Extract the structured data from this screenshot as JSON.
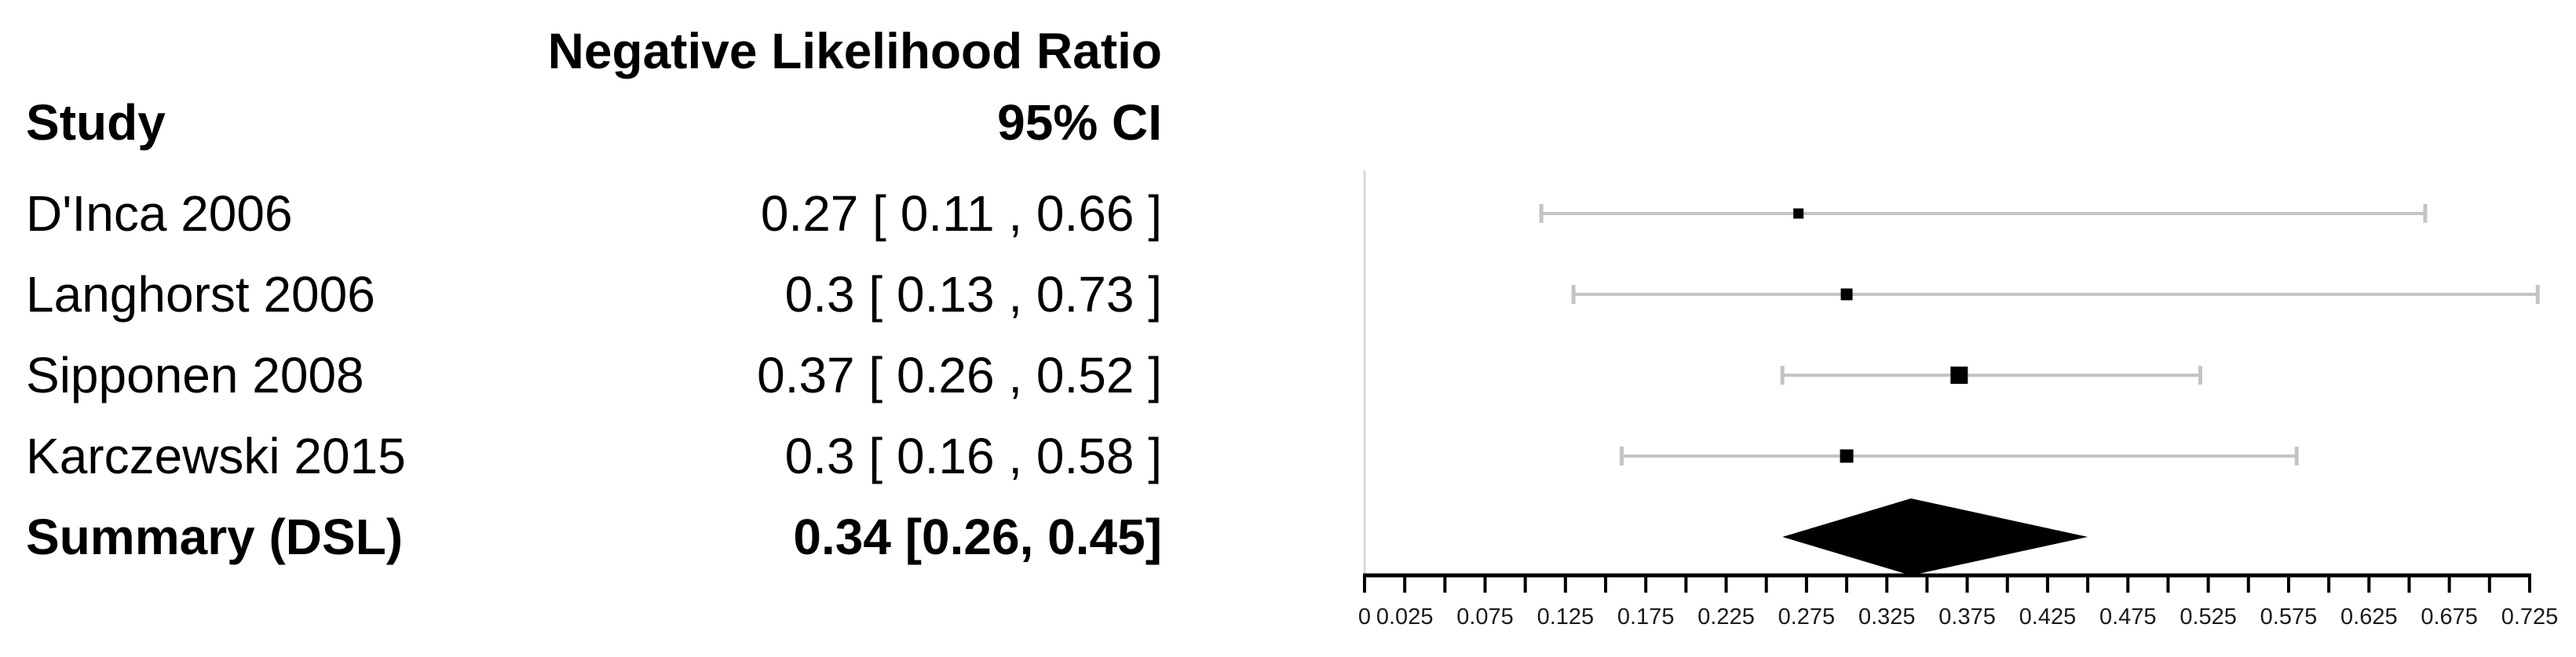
{
  "header": {
    "title": "Negative Likelihood Ratio",
    "study_col": "Study",
    "ci_col": "95% CI"
  },
  "table": {
    "rows": [
      {
        "study": "D'Inca 2006",
        "ci": "0.27 [ 0.11 , 0.66 ]"
      },
      {
        "study": "Langhorst 2006",
        "ci": "0.3 [ 0.13 , 0.73 ]"
      },
      {
        "study": "Sipponen 2008",
        "ci": "0.37 [ 0.26 , 0.52 ]"
      },
      {
        "study": "Karczewski 2015",
        "ci": "0.3 [ 0.16 , 0.58 ]"
      }
    ],
    "summary_row": {
      "study": "Summary (DSL)",
      "ci": "0.34 [0.26, 0.45]"
    }
  },
  "chart_data": {
    "type": "forest",
    "title": "Negative Likelihood Ratio",
    "measure": "Negative Likelihood Ratio (95% CI)",
    "studies": [
      {
        "name": "D'Inca 2006",
        "estimate": 0.27,
        "lower": 0.11,
        "upper": 0.66,
        "marker_px": 13
      },
      {
        "name": "Langhorst 2006",
        "estimate": 0.3,
        "lower": 0.13,
        "upper": 0.73,
        "marker_px": 15
      },
      {
        "name": "Sipponen 2008",
        "estimate": 0.37,
        "lower": 0.26,
        "upper": 0.52,
        "marker_px": 22
      },
      {
        "name": "Karczewski 2015",
        "estimate": 0.3,
        "lower": 0.16,
        "upper": 0.58,
        "marker_px": 17
      }
    ],
    "summary": {
      "name": "Summary (DSL)",
      "estimate": 0.34,
      "lower": 0.26,
      "upper": 0.45,
      "model": "DSL"
    },
    "axis": {
      "min": 0,
      "max": 0.725,
      "tick_step": 0.025,
      "tick_labels": [
        "0",
        "0.025",
        "0.075",
        "0.125",
        "0.175",
        "0.225",
        "0.275",
        "0.325",
        "0.375",
        "0.425",
        "0.475",
        "0.525",
        "0.575",
        "0.625",
        "0.675",
        "0.725"
      ],
      "grid": false
    },
    "legend": null
  },
  "colors": {
    "ci_line": "#c4c4c4",
    "baseline": "#d9d9d9",
    "axis": "#000000",
    "marker": "#000000",
    "diamond": "#000000",
    "tick_label": "#1a1a1a"
  }
}
